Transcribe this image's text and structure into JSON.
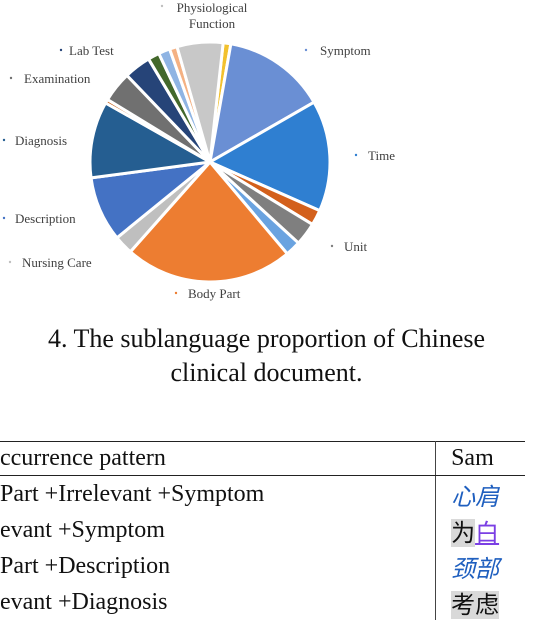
{
  "chart_data": {
    "type": "pie",
    "slices": [
      {
        "label": "",
        "value": 1.0,
        "color": "#f2c12e"
      },
      {
        "label": "Symptom",
        "value": 13.5,
        "color": "#6a8fd4"
      },
      {
        "label": "Time",
        "value": 14.5,
        "color": "#2f7fd1"
      },
      {
        "label": "",
        "value": 2.0,
        "color": "#d3601c"
      },
      {
        "label": "Unit",
        "value": 3.0,
        "color": "#7f7f7f"
      },
      {
        "label": "",
        "value": 2.0,
        "color": "#6aa3e0"
      },
      {
        "label": "Body Part",
        "value": 22.0,
        "color": "#ed7d31"
      },
      {
        "label": "Nursing Care",
        "value": 2.5,
        "color": "#bfbfbf"
      },
      {
        "label": "Description",
        "value": 8.5,
        "color": "#4472c4"
      },
      {
        "label": "Diagnosis",
        "value": 10.0,
        "color": "#255e91"
      },
      {
        "label": "",
        "value": 0.5,
        "color": "#c55a11"
      },
      {
        "label": "Examination",
        "value": 4.0,
        "color": "#707070"
      },
      {
        "label": "Lab Test",
        "value": 3.5,
        "color": "#264478"
      },
      {
        "label": "",
        "value": 1.5,
        "color": "#43682b"
      },
      {
        "label": "",
        "value": 1.5,
        "color": "#8fb4e3"
      },
      {
        "label": "",
        "value": 1.0,
        "color": "#f4b183"
      },
      {
        "label": "Physiological Function",
        "value": 6.0,
        "color": "#c8c8c8"
      }
    ],
    "labels": [
      {
        "text": "Physiological",
        "text2": "Function"
      },
      {
        "text": "Symptom"
      },
      {
        "text": "Lab Test"
      },
      {
        "text": "Examination"
      },
      {
        "text": "Time"
      },
      {
        "text": "Diagnosis"
      },
      {
        "text": "Description"
      },
      {
        "text": "Unit"
      },
      {
        "text": "Nursing Care"
      },
      {
        "text": "Body Part"
      }
    ]
  },
  "caption": {
    "line1": "4. The sublanguage proportion of Chinese",
    "line2": "clinical document."
  },
  "table": {
    "header": {
      "col1": "ccurrence pattern",
      "col2": "Sam"
    },
    "rows": [
      {
        "col1": "Part +Irrelevant +Symptom",
        "col2": "心肩"
      },
      {
        "col1": "evant +Symptom",
        "col2a": "为",
        "col2b": "白"
      },
      {
        "col1": "Part +Description",
        "col2": "颈部"
      },
      {
        "col1": "evant +Diagnosis",
        "col2": "考虑"
      }
    ]
  }
}
